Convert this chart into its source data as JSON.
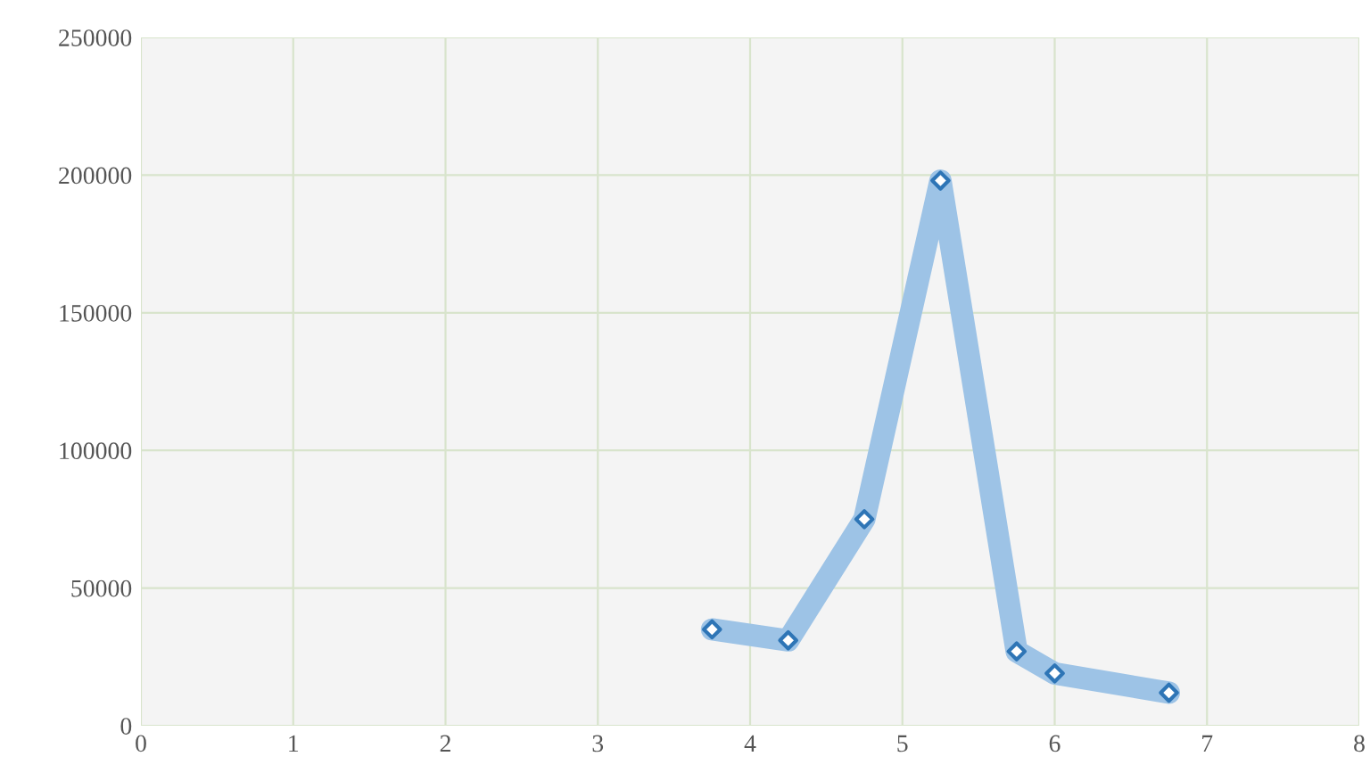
{
  "chart_data": {
    "type": "line",
    "x": [
      3.75,
      4.25,
      4.75,
      5.25,
      5.75,
      6,
      6.75
    ],
    "series": [
      {
        "color": "#9dc3e6",
        "values": [
          35000,
          31000,
          75000,
          198000,
          27000,
          19000,
          12000
        ]
      }
    ],
    "xlim": [
      0,
      8
    ],
    "xticks": [
      0,
      1,
      2,
      3,
      4,
      5,
      6,
      7,
      8
    ],
    "ylim": [
      0,
      250000
    ],
    "yticks": [
      0,
      50000,
      100000,
      150000,
      200000,
      250000
    ],
    "grid": true,
    "marker": "diamond",
    "line_style": "solid"
  }
}
